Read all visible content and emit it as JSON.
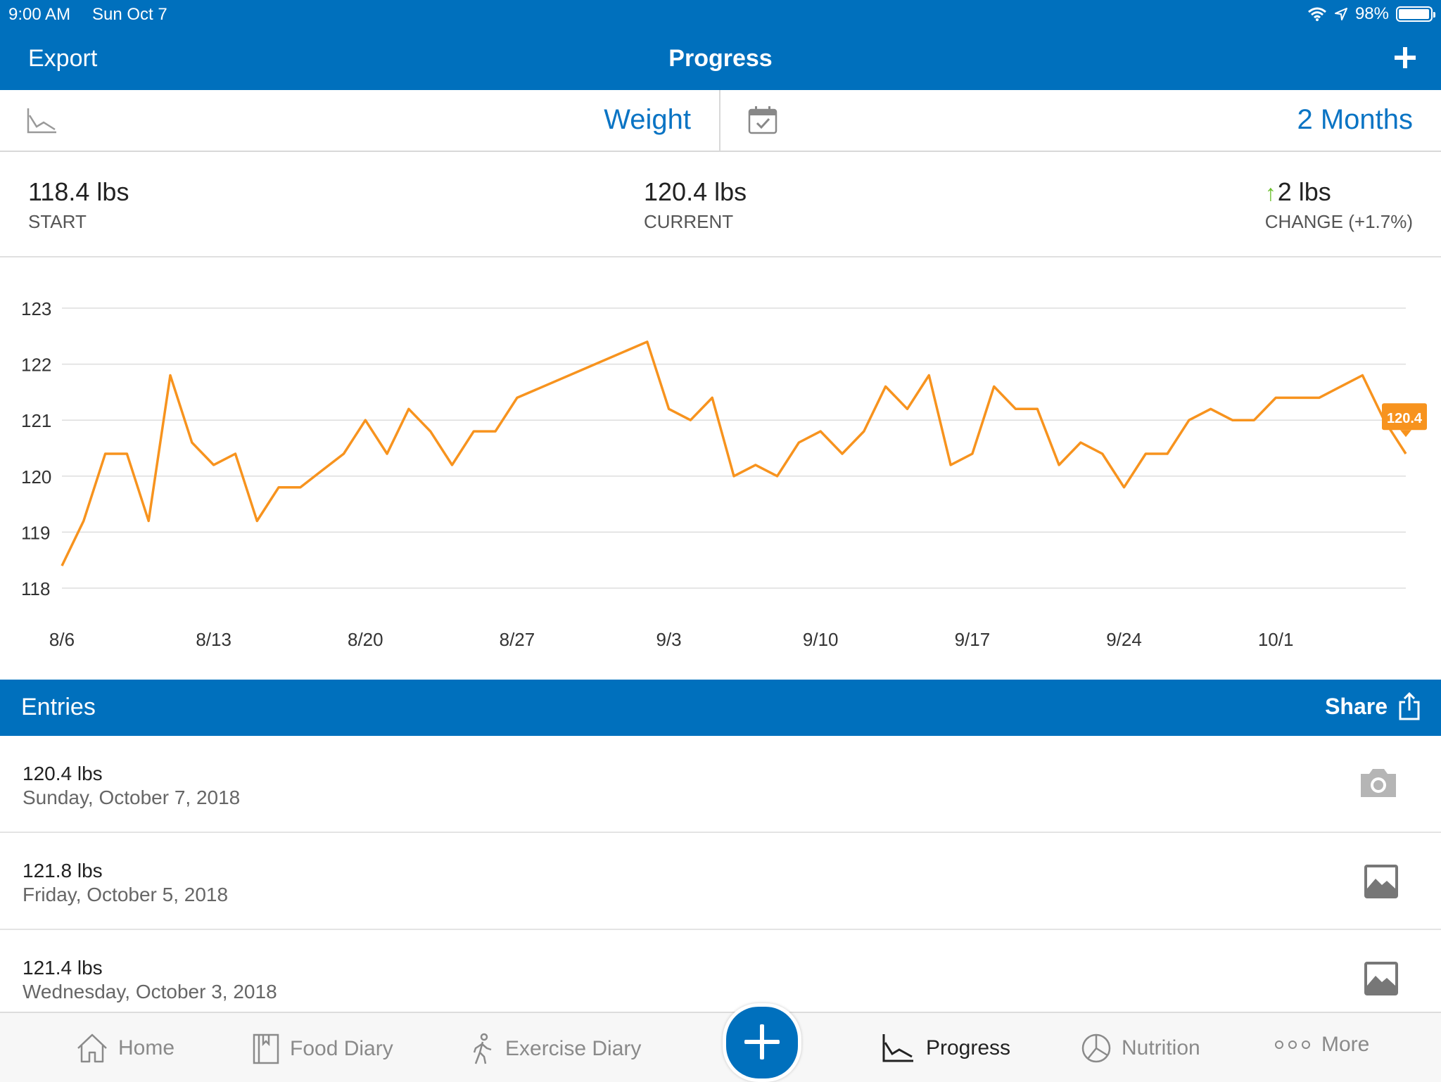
{
  "status_bar": {
    "time": "9:00 AM",
    "date": "Sun Oct 7",
    "battery": "98%",
    "battery_level": 0.98,
    "icons": [
      "wifi-icon",
      "location-arrow-icon",
      "battery-icon"
    ]
  },
  "nav": {
    "left_label": "Export",
    "title": "Progress",
    "right_icon": "plus-icon"
  },
  "selector": {
    "chart_icon": "line-chart-icon",
    "metric": "Weight",
    "calendar_icon": "calendar-check-icon",
    "range": "2 Months"
  },
  "summary": {
    "start_value": "118.4 lbs",
    "start_label": "START",
    "current_value": "120.4 lbs",
    "current_label": "CURRENT",
    "change_value": "2 lbs",
    "change_label": "CHANGE (+1.7%)",
    "change_color": "#6abf2c"
  },
  "chart_data": {
    "type": "line",
    "line_color": "#f7931e",
    "grid": true,
    "ylim": [
      118,
      123
    ],
    "yticks": [
      "123",
      "122",
      "121",
      "120",
      "119",
      "118"
    ],
    "xticks": [
      "8/6",
      "8/13",
      "8/20",
      "8/27",
      "9/3",
      "9/10",
      "9/17",
      "9/24",
      "10/1"
    ],
    "xlim_days": [
      0,
      62
    ],
    "callout": "120.4",
    "series": [
      {
        "x": [
          0,
          1,
          2,
          3,
          4,
          5,
          6,
          7,
          8,
          9,
          10,
          11,
          12,
          13,
          14,
          15,
          16,
          17,
          18,
          19,
          20,
          21,
          27,
          28,
          29,
          30,
          31,
          32,
          33,
          34,
          35,
          36,
          37,
          38,
          39,
          40,
          41,
          42,
          43,
          44,
          45,
          46,
          47,
          48,
          49,
          50,
          51,
          52,
          53,
          54,
          55,
          56,
          57,
          58,
          59,
          60,
          61,
          62
        ],
        "y": [
          118.4,
          119.2,
          120.4,
          120.4,
          119.2,
          121.8,
          120.6,
          120.2,
          120.4,
          119.2,
          119.8,
          119.8,
          120.1,
          120.4,
          121.0,
          120.4,
          121.2,
          120.8,
          120.2,
          120.8,
          120.8,
          121.4,
          122.4,
          121.2,
          121.0,
          121.4,
          120.0,
          120.2,
          120.0,
          120.6,
          120.8,
          120.4,
          120.8,
          121.6,
          121.2,
          121.8,
          120.2,
          120.4,
          121.6,
          121.2,
          121.2,
          120.2,
          120.6,
          120.4,
          119.8,
          120.4,
          120.4,
          121.0,
          121.2,
          121.0,
          121.0,
          121.4,
          121.4,
          121.4,
          121.6,
          121.8,
          121.0,
          120.4
        ]
      }
    ]
  },
  "entries_header": {
    "title": "Entries",
    "share_label": "Share"
  },
  "entries": [
    {
      "weight": "120.4 lbs",
      "date": "Sunday, October 7, 2018",
      "icon": "camera-icon"
    },
    {
      "weight": "121.8 lbs",
      "date": "Friday, October 5, 2018",
      "icon": "photo-icon"
    },
    {
      "weight": "121.4 lbs",
      "date": "Wednesday, October 3, 2018",
      "icon": "photo-icon"
    }
  ],
  "tabs": [
    {
      "label": "Home",
      "icon": "home-icon",
      "active": false
    },
    {
      "label": "Food Diary",
      "icon": "book-icon",
      "active": false
    },
    {
      "label": "Exercise Diary",
      "icon": "walking-icon",
      "active": false
    },
    {
      "label": "Progress",
      "icon": "line-chart-icon",
      "active": true
    },
    {
      "label": "Nutrition",
      "icon": "pie-chart-icon",
      "active": false
    },
    {
      "label": "More",
      "icon": "more-dots-icon",
      "active": false
    }
  ],
  "fab_icon": "plus-icon"
}
